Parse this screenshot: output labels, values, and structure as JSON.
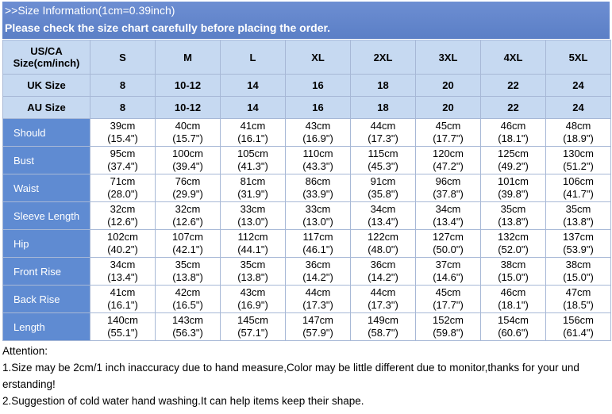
{
  "header": {
    "title": ">>Size Information(1cm=0.39inch)",
    "subtitle": "Please check the size chart carefully before placing the order."
  },
  "table": {
    "size_header": {
      "label": [
        "US/CA",
        "Size(cm/inch)"
      ],
      "sizes": [
        "S",
        "M",
        "L",
        "XL",
        "2XL",
        "3XL",
        "4XL",
        "5XL"
      ]
    },
    "size_rows": [
      {
        "label": "UK Size",
        "values": [
          "8",
          "10-12",
          "14",
          "16",
          "18",
          "20",
          "22",
          "24"
        ]
      },
      {
        "label": "AU Size",
        "values": [
          "8",
          "10-12",
          "14",
          "16",
          "18",
          "20",
          "22",
          "24"
        ]
      }
    ],
    "rows": [
      {
        "label": "Should",
        "cm": [
          "39cm",
          "40cm",
          "41cm",
          "43cm",
          "44cm",
          "45cm",
          "46cm",
          "48cm"
        ],
        "inch": [
          "(15.4\")",
          "(15.7\")",
          "(16.1\")",
          "(16.9\")",
          "(17.3\")",
          "(17.7\")",
          "(18.1\")",
          "(18.9\")"
        ]
      },
      {
        "label": "Bust",
        "cm": [
          "95cm",
          "100cm",
          "105cm",
          "110cm",
          "115cm",
          "120cm",
          "125cm",
          "130cm"
        ],
        "inch": [
          "(37.4\")",
          "(39.4\")",
          "(41.3\")",
          "(43.3\")",
          "(45.3\")",
          "(47.2\")",
          "(49.2\")",
          "(51.2\")"
        ]
      },
      {
        "label": "Waist",
        "cm": [
          "71cm",
          "76cm",
          "81cm",
          "86cm",
          "91cm",
          "96cm",
          "101cm",
          "106cm"
        ],
        "inch": [
          "(28.0\")",
          "(29.9\")",
          "(31.9\")",
          "(33.9\")",
          "(35.8\")",
          "(37.8\")",
          "(39.8\")",
          "(41.7\")"
        ]
      },
      {
        "label": "Sleeve Length",
        "cm": [
          "32cm",
          "32cm",
          "33cm",
          "33cm",
          "34cm",
          "34cm",
          "35cm",
          "35cm"
        ],
        "inch": [
          "(12.6\")",
          "(12.6\")",
          "(13.0\")",
          "(13.0\")",
          "(13.4\")",
          "(13.4\")",
          "(13.8\")",
          "(13.8\")"
        ]
      },
      {
        "label": "Hip",
        "cm": [
          "102cm",
          "107cm",
          "112cm",
          "117cm",
          "122cm",
          "127cm",
          "132cm",
          "137cm"
        ],
        "inch": [
          "(40.2\")",
          "(42.1\")",
          "(44.1\")",
          "(46.1\")",
          "(48.0\")",
          "(50.0\")",
          "(52.0\")",
          "(53.9\")"
        ]
      },
      {
        "label": "Front Rise",
        "cm": [
          "34cm",
          "35cm",
          "35cm",
          "36cm",
          "36cm",
          "37cm",
          "38cm",
          "38cm"
        ],
        "inch": [
          "(13.4\")",
          "(13.8\")",
          "(13.8\")",
          "(14.2\")",
          "(14.2\")",
          "(14.6\")",
          "(15.0\")",
          "(15.0\")"
        ]
      },
      {
        "label": "Back Rise",
        "cm": [
          "41cm",
          "42cm",
          "43cm",
          "44cm",
          "44cm",
          "45cm",
          "46cm",
          "47cm"
        ],
        "inch": [
          "(16.1\")",
          "(16.5\")",
          "(16.9\")",
          "(17.3\")",
          "(17.3\")",
          "(17.7\")",
          "(18.1\")",
          "(18.5\")"
        ]
      },
      {
        "label": "Length",
        "cm": [
          "140cm",
          "143cm",
          "145cm",
          "147cm",
          "149cm",
          "152cm",
          "154cm",
          "156cm"
        ],
        "inch": [
          "(55.1\")",
          "(56.3\")",
          "(57.1\")",
          "(57.9\")",
          "(58.7\")",
          "(59.8\")",
          "(60.6\")",
          "(61.4\")"
        ]
      }
    ]
  },
  "notes": {
    "heading": "Attention:",
    "lines": [
      "1.Size may be 2cm/1 inch inaccuracy due to hand measure,Color may be little different due to monitor,thanks for your und",
      "erstanding!",
      "2.Suggestion of cold water hand washing.It can help items keep their shape."
    ]
  }
}
